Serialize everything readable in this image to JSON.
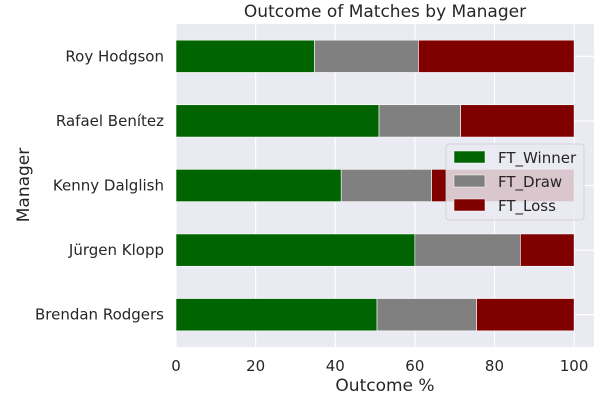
{
  "chart_data": {
    "type": "bar",
    "orientation": "horizontal",
    "stacked": true,
    "title": "Outcome of Matches by Manager",
    "xlabel": "Outcome %",
    "ylabel": "Manager",
    "xlim": [
      0,
      105
    ],
    "xticks": [
      "0",
      "20",
      "40",
      "60",
      "80",
      "100"
    ],
    "grid": true,
    "legend_position": "right",
    "categories": [
      "Roy Hodgson",
      "Rafael Benítez",
      "Kenny Dalglish",
      "Jürgen Klopp",
      "Brendan Rodgers"
    ],
    "series": [
      {
        "name": "FT_Winner",
        "color": "#006400",
        "values": [
          34.8,
          51.0,
          41.5,
          60.0,
          50.5
        ]
      },
      {
        "name": "FT_Draw",
        "color": "#808080",
        "values": [
          26.1,
          20.5,
          22.7,
          26.5,
          25.0
        ]
      },
      {
        "name": "FT_Loss",
        "color": "#800000",
        "values": [
          39.1,
          28.5,
          35.8,
          13.5,
          24.5
        ]
      }
    ]
  }
}
